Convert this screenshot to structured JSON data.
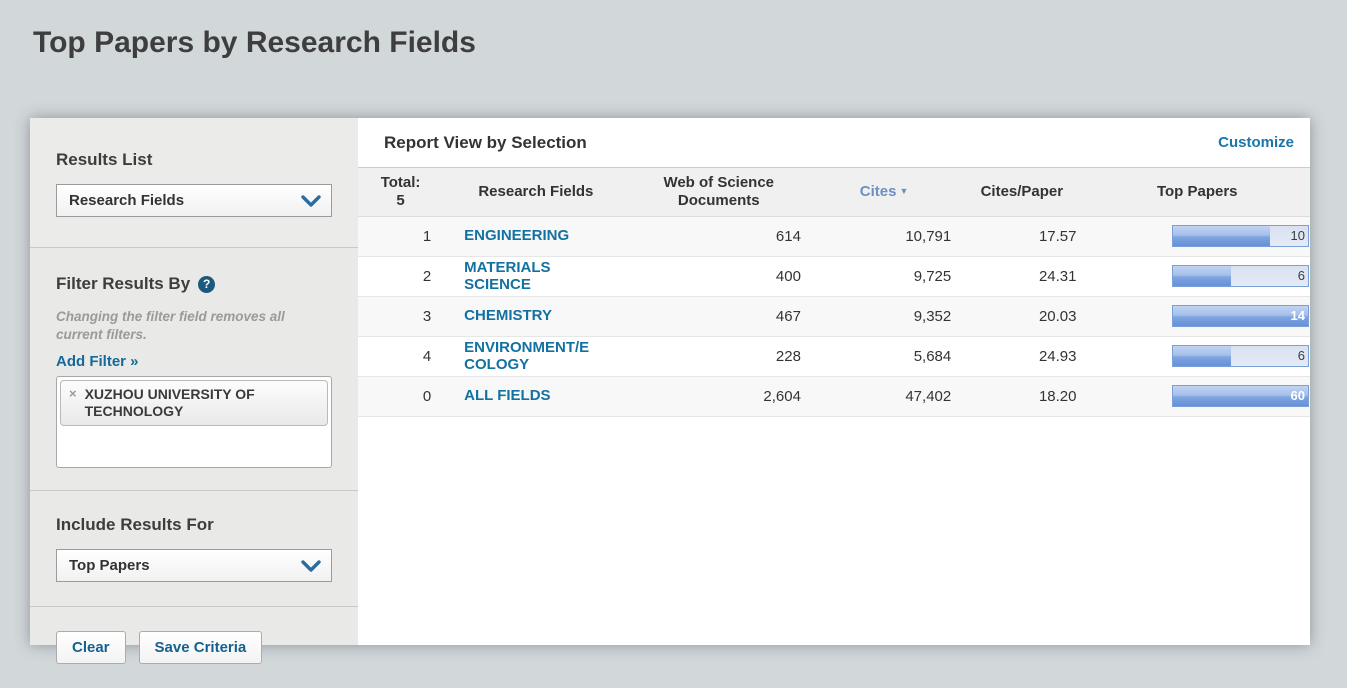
{
  "page": {
    "title": "Top Papers by Research Fields"
  },
  "sidebar": {
    "results_list": {
      "label": "Results List",
      "selected": "Research Fields"
    },
    "filter": {
      "heading": "Filter Results By",
      "help_icon": "?",
      "note": "Changing the filter field removes all current filters.",
      "add_filter_label": "Add Filter »",
      "chips": [
        {
          "remove_icon": "×",
          "label": "XUZHOU UNIVERSITY OF TECHNOLOGY"
        }
      ]
    },
    "include_results": {
      "label": "Include Results For",
      "selected": "Top Papers"
    },
    "actions": {
      "clear_label": "Clear",
      "save_label": "Save Criteria"
    }
  },
  "report": {
    "heading": "Report View by Selection",
    "customize_label": "Customize",
    "table": {
      "columns": [
        {
          "label": "Total:\n5"
        },
        {
          "label": "Research Fields"
        },
        {
          "label": "Web of Science\nDocuments"
        },
        {
          "label": "Cites",
          "sort_indicator": "▼",
          "sorted": true
        },
        {
          "label": "Cites/Paper"
        },
        {
          "label": "Top Papers"
        }
      ],
      "rows": [
        {
          "rank": "1",
          "field": "ENGINEERING",
          "wos_documents": "614",
          "cites": "10,791",
          "cites_per_paper": "17.57",
          "top_papers": "10",
          "bar_percent": 72,
          "bar_full": false
        },
        {
          "rank": "2",
          "field": "MATERIALS\nSCIENCE",
          "wos_documents": "400",
          "cites": "9,725",
          "cites_per_paper": "24.31",
          "top_papers": "6",
          "bar_percent": 43,
          "bar_full": false
        },
        {
          "rank": "3",
          "field": "CHEMISTRY",
          "wos_documents": "467",
          "cites": "9,352",
          "cites_per_paper": "20.03",
          "top_papers": "14",
          "bar_percent": 100,
          "bar_full": true
        },
        {
          "rank": "4",
          "field": "ENVIRONMENT/E\nCOLOGY",
          "wos_documents": "228",
          "cites": "5,684",
          "cites_per_paper": "24.93",
          "top_papers": "6",
          "bar_percent": 43,
          "bar_full": false
        },
        {
          "rank": "0",
          "field": "ALL FIELDS",
          "wos_documents": "2,604",
          "cites": "47,402",
          "cites_per_paper": "18.20",
          "top_papers": "60",
          "bar_percent": 100,
          "bar_full": true
        }
      ]
    }
  },
  "colors": {
    "page_background": "#d2d8da",
    "accent_link": "#17689b",
    "field_link": "#1371a1",
    "sorted_column": "#6e8fc3",
    "bar_border": "#7aa0d8",
    "bar_track": "#dfe6f4",
    "bar_fill_top": "#c0d3f2",
    "bar_fill_bottom": "#6590da"
  }
}
